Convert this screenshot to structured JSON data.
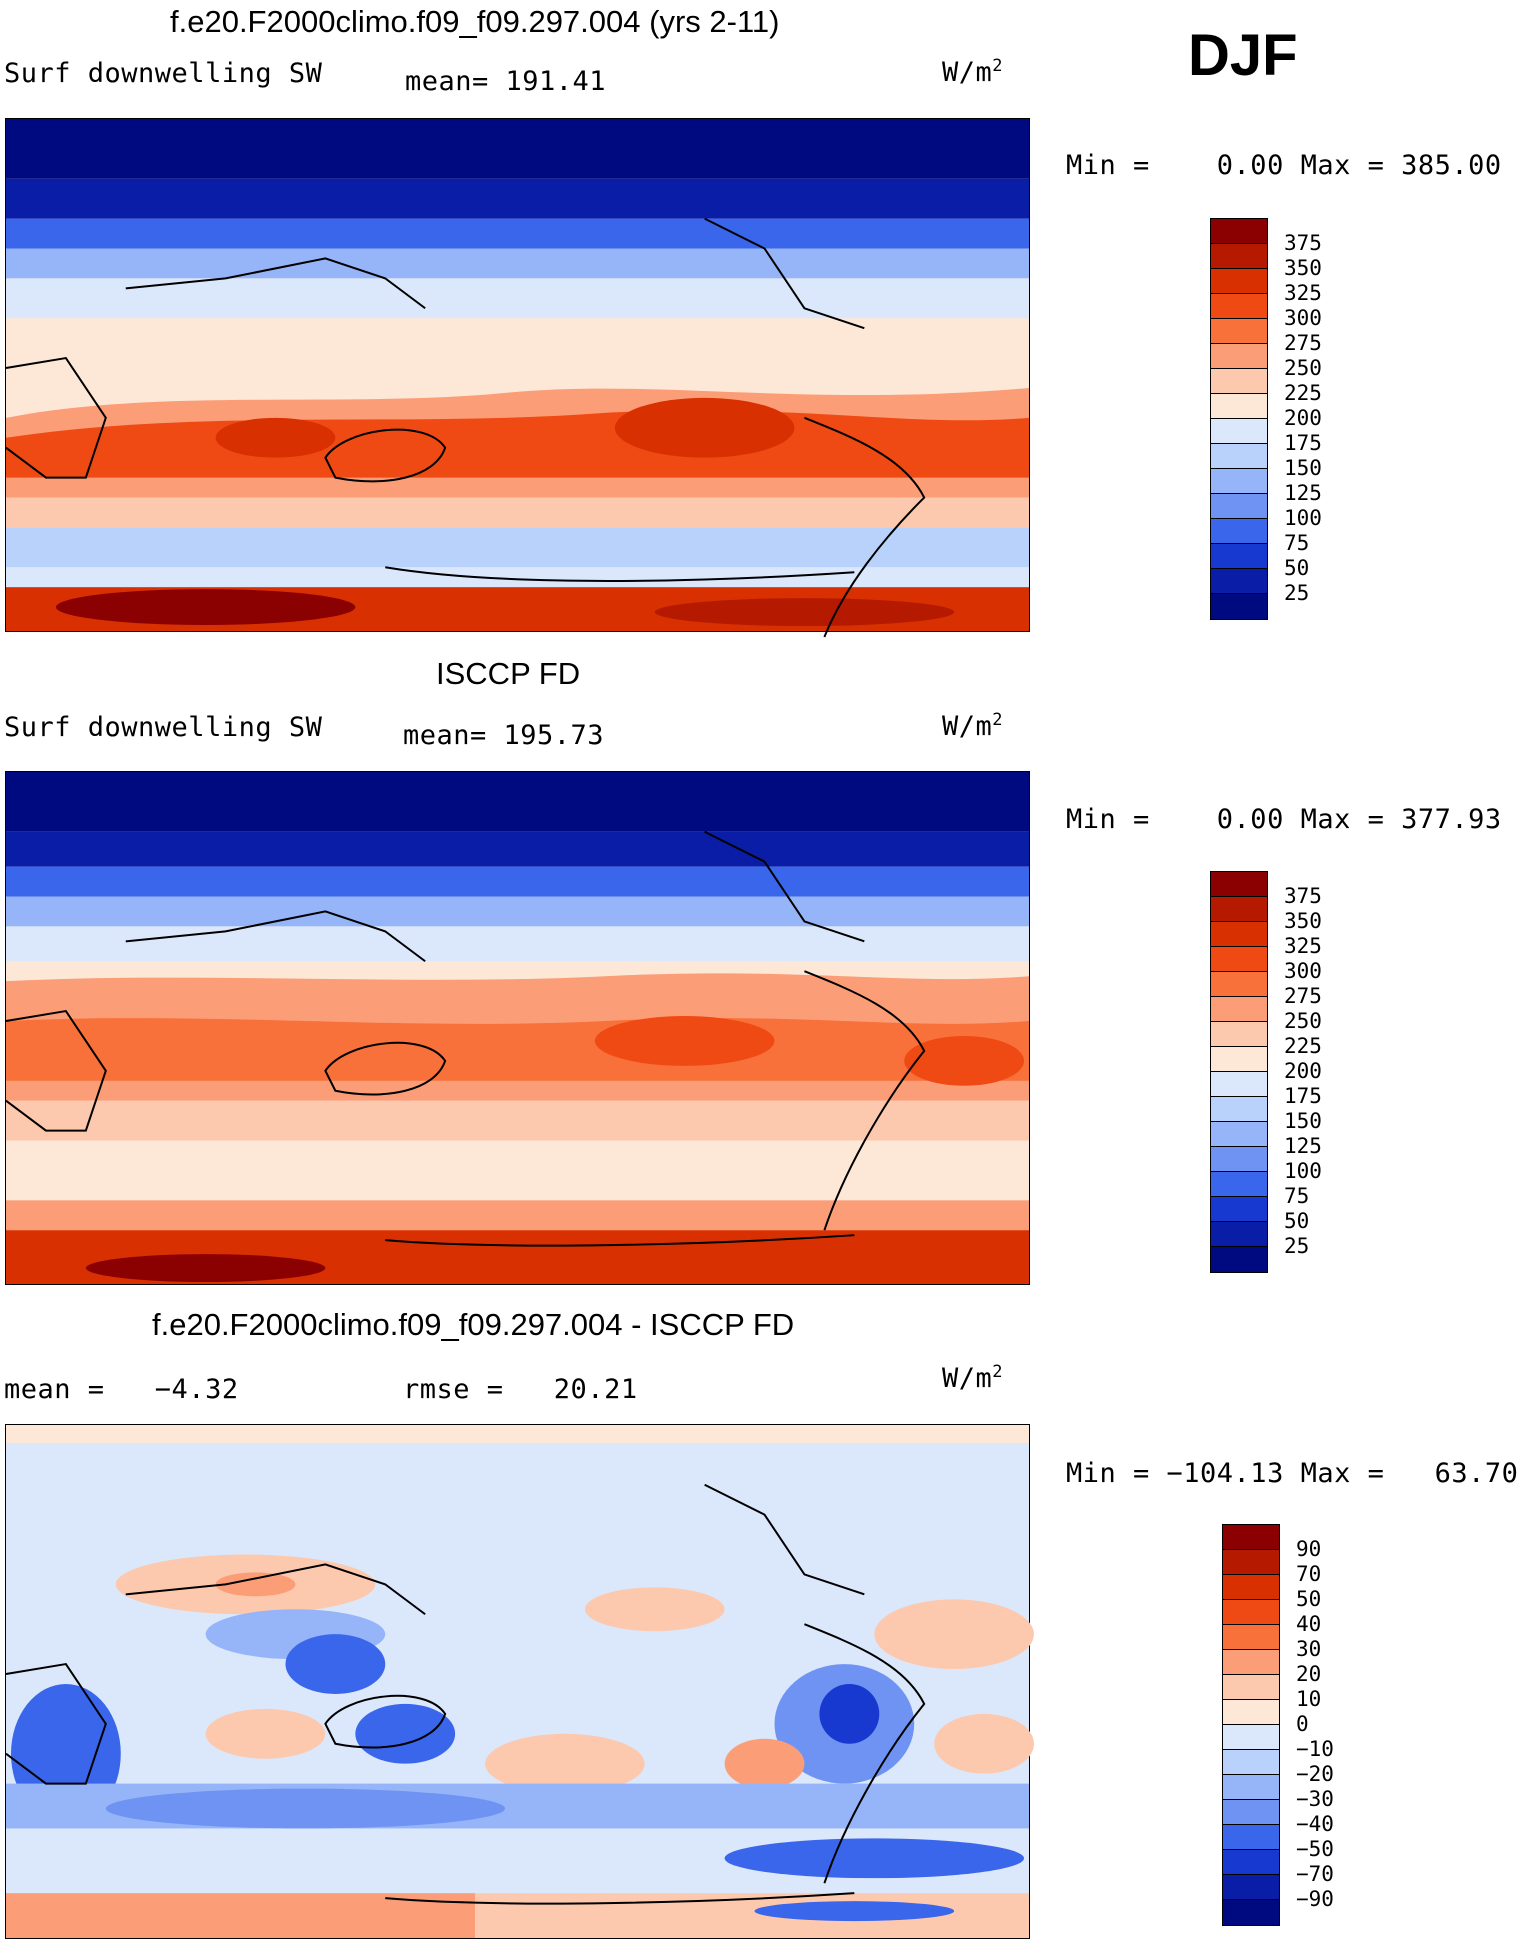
{
  "season": "DJF",
  "panels": [
    {
      "title": "f.e20.F2000climo.f09_f09.297.004 (yrs 2-11)",
      "variable": "Surf downwelling SW",
      "stat1": "mean= 191.41",
      "units_base": "W/m",
      "units_exp": "2",
      "minmax": "Min =    0.00 Max = 385.00",
      "colorbar": {
        "labels": [
          "375",
          "350",
          "325",
          "300",
          "275",
          "250",
          "225",
          "200",
          "175",
          "150",
          "125",
          "100",
          "75",
          "50",
          "25"
        ],
        "colors": [
          "#8b0000",
          "#b51a00",
          "#d83000",
          "#f04a14",
          "#f8703a",
          "#fb9e78",
          "#fdc9ae",
          "#fde8d8",
          "#dbe8fb",
          "#b9d2fb",
          "#95b5f8",
          "#6e93f3",
          "#3a66ec",
          "#1839cf",
          "#0a1da6",
          "#000a80"
        ]
      }
    },
    {
      "title": "ISCCP FD",
      "variable": "Surf downwelling SW",
      "stat1": "mean= 195.73",
      "units_base": "W/m",
      "units_exp": "2",
      "minmax": "Min =    0.00 Max = 377.93",
      "colorbar": {
        "labels": [
          "375",
          "350",
          "325",
          "300",
          "275",
          "250",
          "225",
          "200",
          "175",
          "150",
          "125",
          "100",
          "75",
          "50",
          "25"
        ],
        "colors": [
          "#8b0000",
          "#b51a00",
          "#d83000",
          "#f04a14",
          "#f8703a",
          "#fb9e78",
          "#fdc9ae",
          "#fde8d8",
          "#dbe8fb",
          "#b9d2fb",
          "#95b5f8",
          "#6e93f3",
          "#3a66ec",
          "#1839cf",
          "#0a1da6",
          "#000a80"
        ]
      }
    },
    {
      "title": "f.e20.F2000climo.f09_f09.297.004 - ISCCP FD",
      "stat1": "mean =   −4.32",
      "stat2": "rmse =   20.21",
      "units_base": "W/m",
      "units_exp": "2",
      "minmax": "Min = −104.13 Max =   63.70",
      "colorbar": {
        "labels": [
          "90",
          "70",
          "50",
          "40",
          "30",
          "20",
          "10",
          "0",
          "−10",
          "−20",
          "−30",
          "−40",
          "−50",
          "−70",
          "−90"
        ],
        "colors": [
          "#8b0000",
          "#b51a00",
          "#d83000",
          "#f04a14",
          "#f8703a",
          "#fb9e78",
          "#fdc9ae",
          "#fde8d8",
          "#dbe8fb",
          "#b9d2fb",
          "#95b5f8",
          "#6e93f3",
          "#3a66ec",
          "#1839cf",
          "#0a1da6",
          "#000a80"
        ]
      }
    }
  ]
}
